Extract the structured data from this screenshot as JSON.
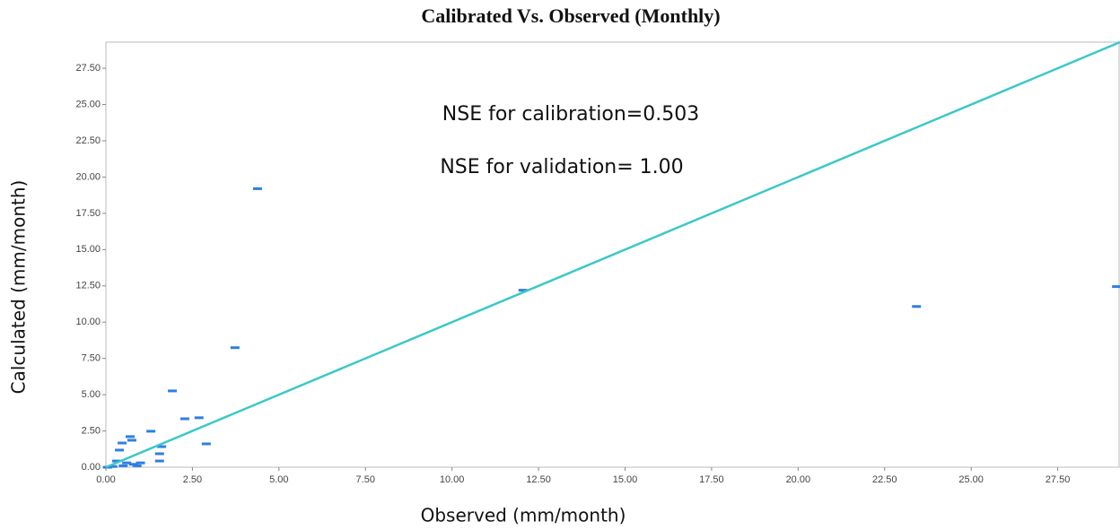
{
  "chart_data": {
    "type": "scatter",
    "title": "Calibrated Vs. Observed (Monthly)",
    "x_label": "Observed (mm/month)",
    "y_label": "Calculated (mm/month)",
    "annotations": [
      "NSE for calibration=0.503",
      "NSE for validation= 1.00"
    ],
    "xlim": [
      0,
      29.3
    ],
    "ylim": [
      0,
      29.3
    ],
    "xticks": [
      {
        "value": 0,
        "label": "0.00"
      },
      {
        "value": 2.5,
        "label": "2.50"
      },
      {
        "value": 5,
        "label": "5.00"
      },
      {
        "value": 7.5,
        "label": "7.50"
      },
      {
        "value": 10,
        "label": "10.00"
      },
      {
        "value": 12.5,
        "label": "12.50"
      },
      {
        "value": 15,
        "label": "15.00"
      },
      {
        "value": 17.5,
        "label": "17.50"
      },
      {
        "value": 20,
        "label": "20.00"
      },
      {
        "value": 22.5,
        "label": "22.50"
      },
      {
        "value": 25,
        "label": "25.00"
      },
      {
        "value": 27.5,
        "label": "27.50"
      }
    ],
    "yticks": [
      {
        "value": 0,
        "label": "0.00"
      },
      {
        "value": 2.5,
        "label": "2.50"
      },
      {
        "value": 5,
        "label": "5.00"
      },
      {
        "value": 7.5,
        "label": "7.50"
      },
      {
        "value": 10,
        "label": "10.00"
      },
      {
        "value": 12.5,
        "label": "12.50"
      },
      {
        "value": 15,
        "label": "15.00"
      },
      {
        "value": 17.5,
        "label": "17.50"
      },
      {
        "value": 20,
        "label": "20.00"
      },
      {
        "value": 22.5,
        "label": "22.50"
      },
      {
        "value": 25,
        "label": "25.00"
      },
      {
        "value": 27.5,
        "label": "27.50"
      }
    ],
    "series": [
      {
        "style": "dash-marker",
        "color": "#2f7fe0",
        "x": [
          4.38,
          3.73,
          1.92,
          2.28,
          2.69,
          2.9,
          1.3,
          0.7,
          0.75,
          0.47,
          0.39,
          1.61,
          1.55,
          1.55,
          0.31,
          0.6,
          0.8,
          1.0,
          0.9,
          0.5,
          0.2,
          0.05,
          12.05,
          23.42,
          29.2
        ],
        "y": [
          19.2,
          8.24,
          5.26,
          3.34,
          3.41,
          1.61,
          2.48,
          2.11,
          1.86,
          1.67,
          1.18,
          1.42,
          0.93,
          0.43,
          0.43,
          0.3,
          0.2,
          0.3,
          0.1,
          0.1,
          0.05,
          0.0,
          12.2,
          11.08,
          12.45
        ]
      },
      {
        "style": "line",
        "color": "#3cc8c8",
        "x": [
          0,
          29.3
        ],
        "y": [
          0,
          29.3
        ]
      }
    ]
  }
}
